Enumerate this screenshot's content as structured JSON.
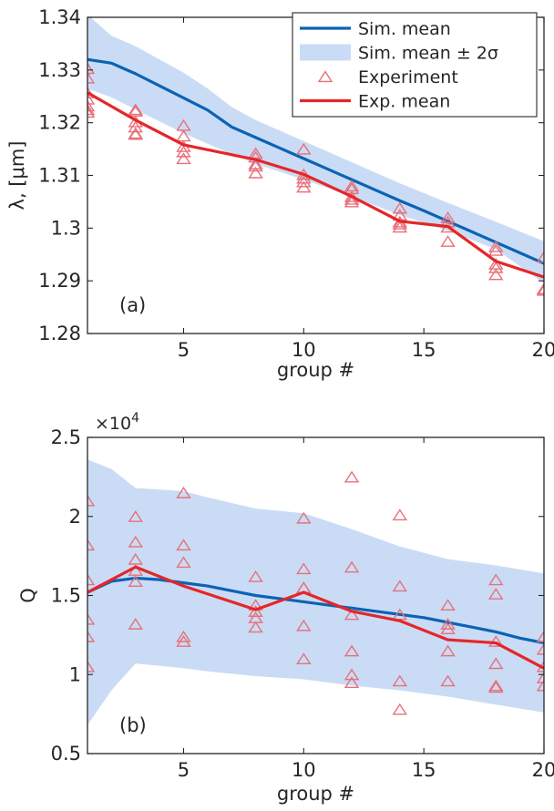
{
  "colors": {
    "sim_mean": "#0b63b5",
    "sim_band": "#cadcf5",
    "experiment": "#e8707a",
    "exp_mean": "#e52628",
    "axis": "#262626"
  },
  "chart_data": [
    {
      "type": "line",
      "panel_label": "(a)",
      "xlabel": "group #",
      "ylabel": "λ, [μm]",
      "xlim": [
        1,
        20
      ],
      "ylim": [
        1.28,
        1.34
      ],
      "xticks": [
        5,
        10,
        15,
        20
      ],
      "xtick_labels": [
        "5",
        "10",
        "15",
        "20"
      ],
      "yticks": [
        1.28,
        1.29,
        1.3,
        1.31,
        1.32,
        1.33,
        1.34
      ],
      "ytick_labels": [
        "1.28",
        "1.29",
        "1.3",
        "1.31",
        "1.32",
        "1.33",
        "1.34"
      ],
      "legend_placement": "top-right",
      "legend": [
        {
          "name": "Sim. mean",
          "kind": "line",
          "color_key": "sim_mean"
        },
        {
          "name": "Sim. mean ± 2σ",
          "kind": "band",
          "color_key": "sim_band"
        },
        {
          "name": "Experiment",
          "kind": "marker",
          "color_key": "experiment"
        },
        {
          "name": "Exp. mean",
          "kind": "line",
          "color_key": "exp_mean"
        }
      ],
      "sim_band": {
        "x": [
          1,
          2,
          3,
          5,
          6,
          7,
          8,
          10,
          12,
          14,
          16,
          18,
          20
        ],
        "upper": [
          1.3405,
          1.3365,
          1.3345,
          1.3295,
          1.3265,
          1.323,
          1.3205,
          1.3165,
          1.3125,
          1.3085,
          1.3048,
          1.3012,
          1.2975
        ],
        "lower": [
          1.3265,
          1.3248,
          1.3225,
          1.318,
          1.316,
          1.314,
          1.3122,
          1.3092,
          1.306,
          1.3025,
          1.2995,
          1.296,
          1.2895
        ]
      },
      "sim_mean": {
        "x": [
          1,
          2,
          3,
          4,
          5,
          6,
          7,
          8,
          9,
          10,
          11,
          12,
          13,
          14,
          15,
          16,
          17,
          18,
          19,
          20
        ],
        "y": [
          1.332,
          1.3313,
          1.3293,
          1.327,
          1.3247,
          1.3224,
          1.3192,
          1.3172,
          1.3152,
          1.3132,
          1.3112,
          1.3092,
          1.3072,
          1.3052,
          1.3033,
          1.3013,
          1.2993,
          1.2973,
          1.2953,
          1.2933
        ]
      },
      "exp_mean": {
        "x": [
          1,
          3,
          5,
          8,
          10,
          12,
          14,
          16,
          18,
          20
        ],
        "y": [
          1.3257,
          1.3205,
          1.3158,
          1.313,
          1.3102,
          1.306,
          1.3013,
          1.3003,
          1.2937,
          1.2907
        ]
      },
      "experiment": {
        "x": [
          1,
          1,
          1,
          1,
          1,
          1,
          1,
          3,
          3,
          3,
          3,
          3,
          3,
          5,
          5,
          5,
          5,
          5,
          8,
          8,
          8,
          8,
          8,
          10,
          10,
          10,
          10,
          10,
          12,
          12,
          12,
          12,
          12,
          14,
          14,
          14,
          14,
          14,
          16,
          16,
          16,
          16,
          18,
          18,
          18,
          18,
          18,
          20,
          20,
          20
        ],
        "y": [
          1.3303,
          1.3285,
          1.3257,
          1.3245,
          1.3232,
          1.3225,
          1.322,
          1.3225,
          1.3222,
          1.3202,
          1.3192,
          1.318,
          1.3178,
          1.3195,
          1.3175,
          1.3155,
          1.3145,
          1.3132,
          1.3142,
          1.3135,
          1.3122,
          1.3118,
          1.3105,
          1.315,
          1.3102,
          1.3095,
          1.3088,
          1.3078,
          1.308,
          1.3075,
          1.306,
          1.3055,
          1.305,
          1.3038,
          1.3025,
          1.3012,
          1.3008,
          1.3002,
          1.302,
          1.3012,
          1.3002,
          1.2975,
          1.2965,
          1.2958,
          1.2932,
          1.2925,
          1.2912,
          1.2945,
          1.2885,
          1.2882
        ]
      }
    },
    {
      "type": "line",
      "panel_label": "(b)",
      "xlabel": "group #",
      "ylabel": "Q",
      "exponent_base": "×10",
      "exponent_power": "4",
      "xlim": [
        1,
        20
      ],
      "ylim": [
        0.5,
        2.5
      ],
      "xticks": [
        5,
        10,
        15,
        20
      ],
      "xtick_labels": [
        "5",
        "10",
        "15",
        "20"
      ],
      "yticks": [
        0.5,
        1,
        1.5,
        2,
        2.5
      ],
      "ytick_labels": [
        "0.5",
        "1",
        "1.5",
        "2",
        "2.5"
      ],
      "sim_band": {
        "x": [
          1,
          2,
          3,
          5,
          6,
          8,
          10,
          12,
          14,
          16,
          18,
          20
        ],
        "upper": [
          2.36,
          2.3,
          2.18,
          2.16,
          2.12,
          2.05,
          2.02,
          1.92,
          1.81,
          1.73,
          1.69,
          1.64
        ],
        "lower": [
          0.68,
          0.9,
          1.07,
          1.04,
          1.02,
          0.99,
          0.97,
          0.93,
          0.9,
          0.86,
          0.81,
          0.76
        ]
      },
      "sim_mean": {
        "x": [
          1,
          2,
          3,
          4,
          5,
          6,
          7,
          8,
          9,
          10,
          11,
          12,
          13,
          14,
          15,
          16,
          17,
          18,
          19,
          20
        ],
        "y": [
          1.52,
          1.59,
          1.61,
          1.6,
          1.58,
          1.56,
          1.53,
          1.5,
          1.48,
          1.46,
          1.44,
          1.42,
          1.4,
          1.38,
          1.36,
          1.33,
          1.3,
          1.27,
          1.23,
          1.2
        ]
      },
      "exp_mean": {
        "x": [
          1,
          3,
          5,
          8,
          10,
          12,
          14,
          16,
          18,
          20
        ],
        "y": [
          1.52,
          1.68,
          1.56,
          1.41,
          1.52,
          1.4,
          1.34,
          1.22,
          1.2,
          1.04
        ]
      },
      "experiment": {
        "x": [
          1,
          1,
          1,
          1,
          1,
          1,
          3,
          3,
          3,
          3,
          3,
          3,
          5,
          5,
          5,
          5,
          5,
          8,
          8,
          8,
          8,
          8,
          10,
          10,
          10,
          10,
          10,
          10,
          12,
          12,
          12,
          12,
          12,
          12,
          14,
          14,
          14,
          14,
          14,
          16,
          16,
          16,
          16,
          16,
          18,
          18,
          18,
          18,
          18,
          18,
          20,
          20,
          20,
          20,
          20
        ],
        "y": [
          2.1,
          1.82,
          1.6,
          1.35,
          1.24,
          1.05,
          2.0,
          1.84,
          1.73,
          1.59,
          1.32,
          1.66,
          2.15,
          1.82,
          1.71,
          1.24,
          1.21,
          1.62,
          1.44,
          1.4,
          1.36,
          1.3,
          1.99,
          1.67,
          1.55,
          1.31,
          1.1,
          1.55,
          2.25,
          1.68,
          1.38,
          1.15,
          1.0,
          0.95,
          2.01,
          1.56,
          1.38,
          0.96,
          0.78,
          1.44,
          1.32,
          1.29,
          1.15,
          0.96,
          1.6,
          1.51,
          1.21,
          1.07,
          0.93,
          0.92,
          1.24,
          1.16,
          1.05,
          0.98,
          0.93
        ]
      }
    }
  ]
}
